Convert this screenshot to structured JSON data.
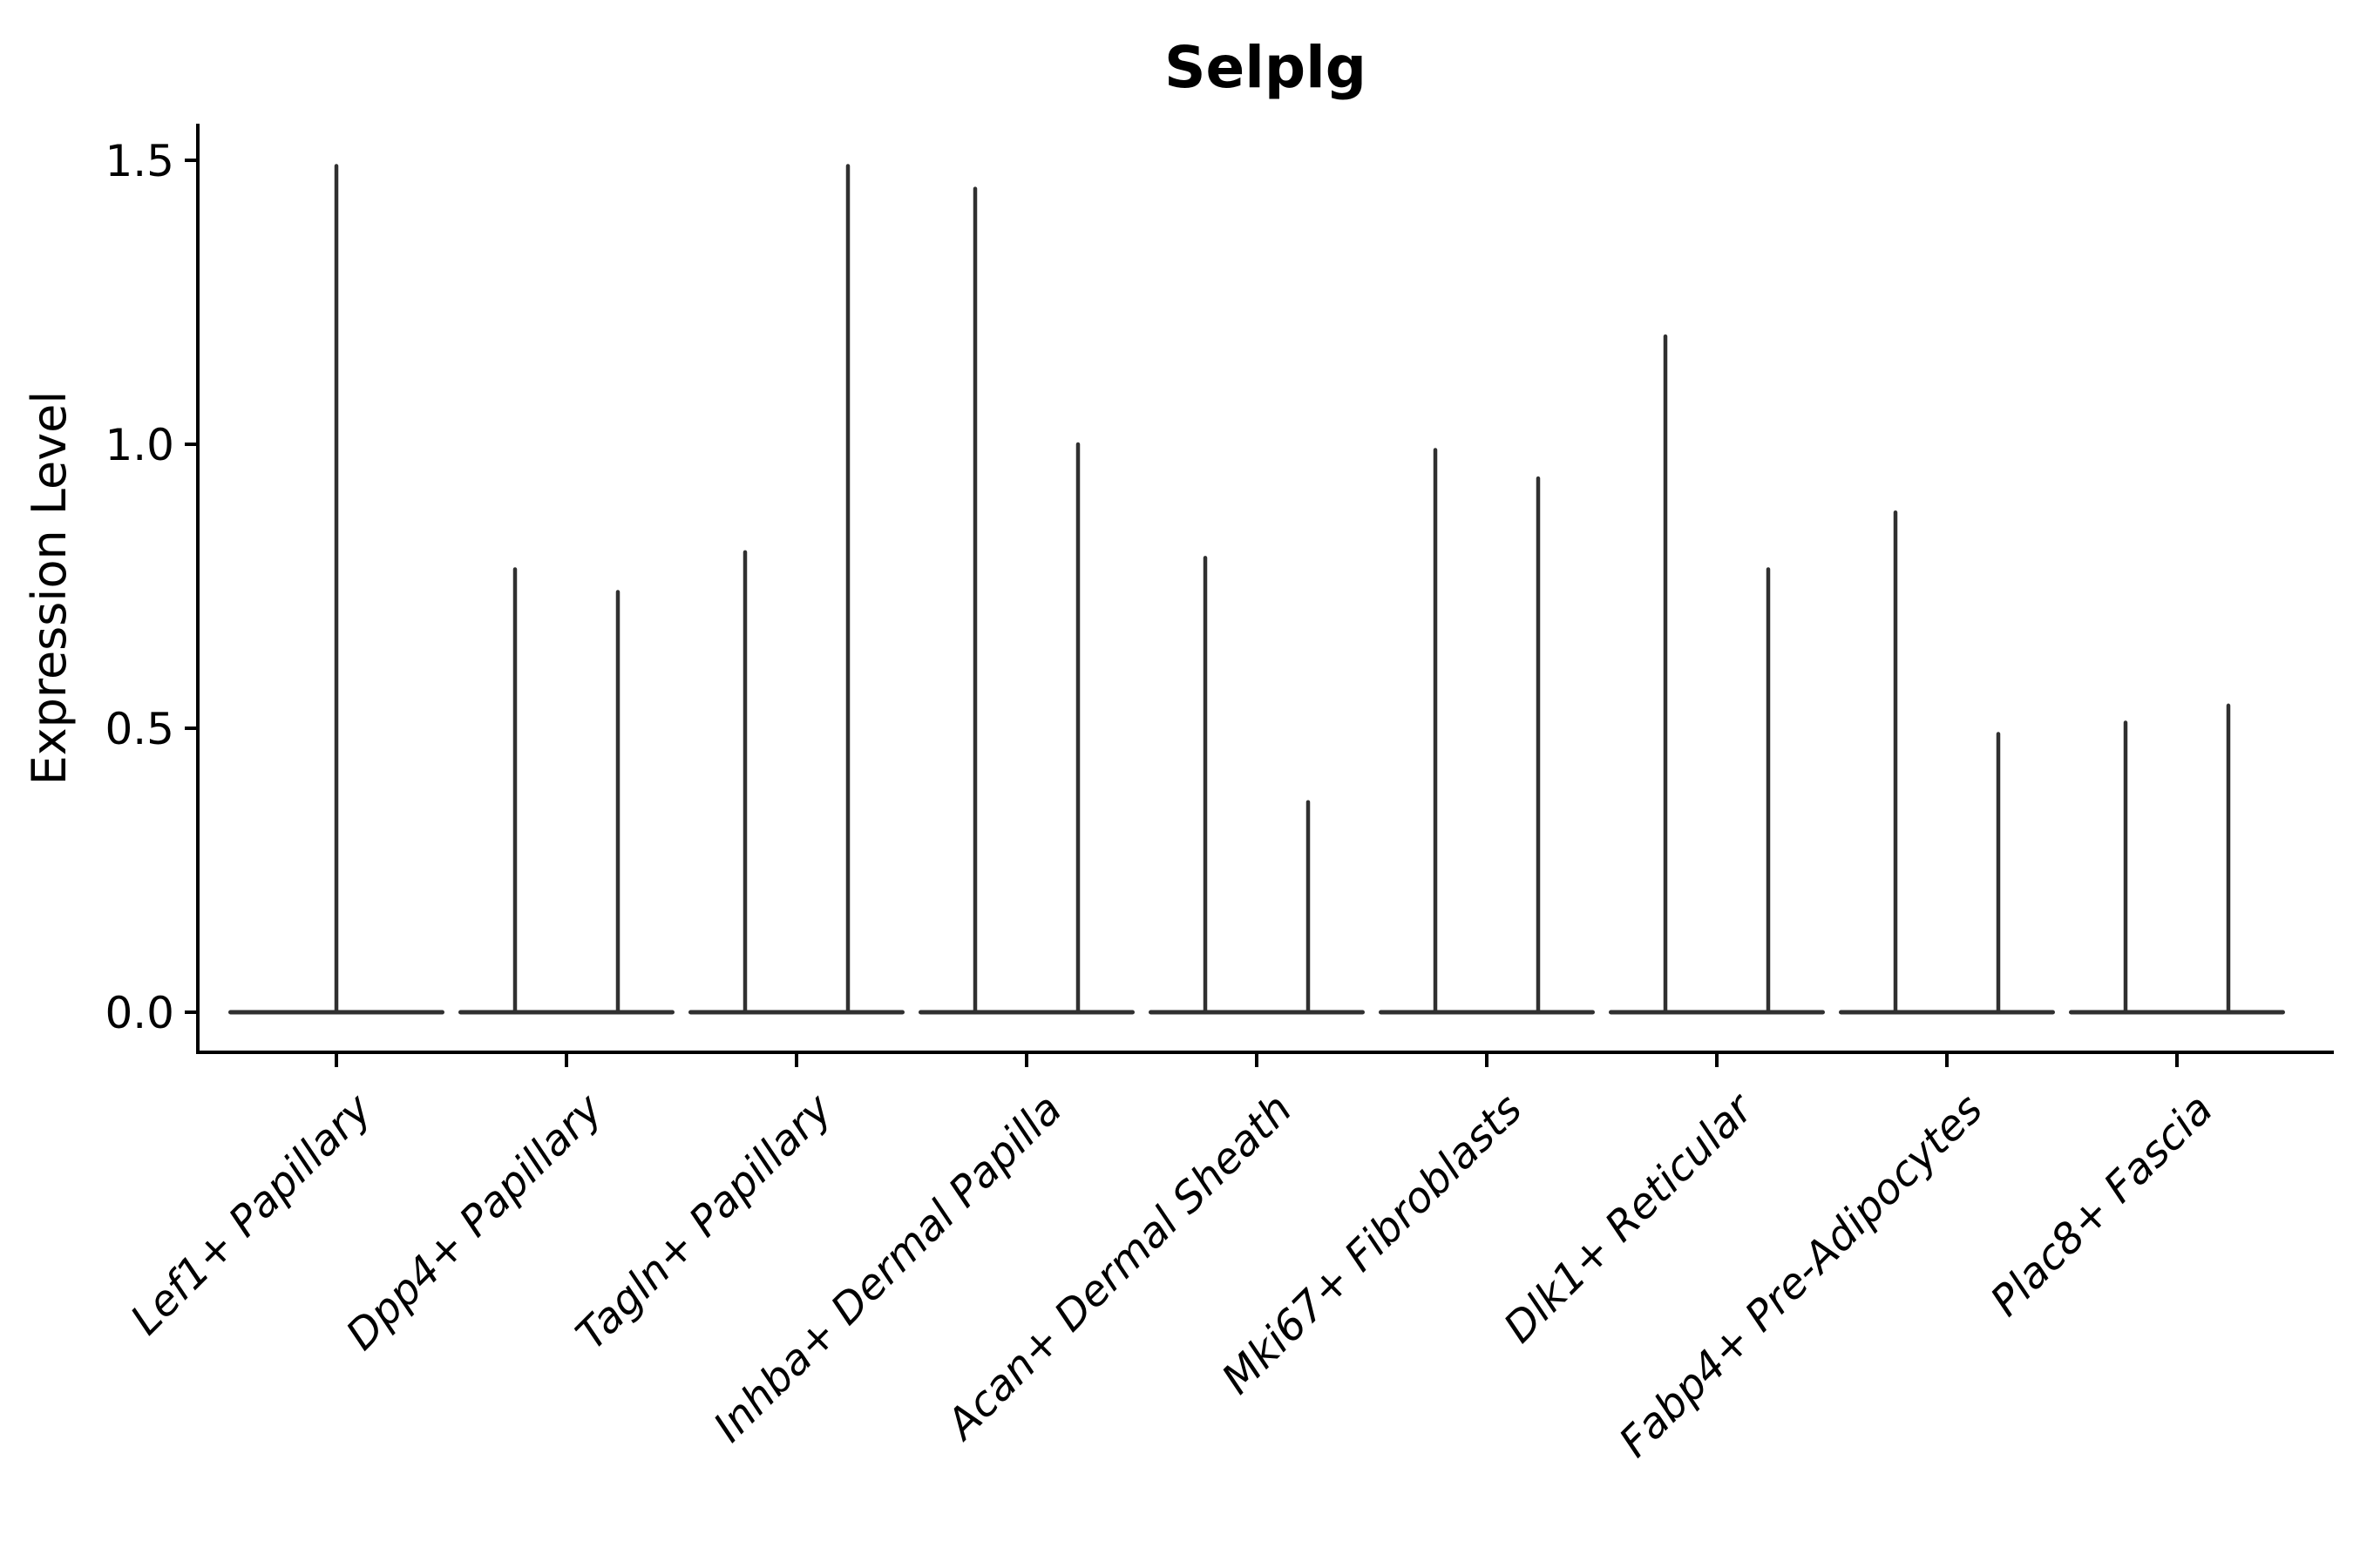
{
  "page": {
    "background": "#ffffff"
  },
  "chart_data": {
    "type": "violin",
    "title": "Selplg",
    "ylabel": "Expression Level",
    "xlabel": "",
    "grid": false,
    "legend": null,
    "ylim": [
      -0.07,
      1.56
    ],
    "yticks": [
      0.0,
      0.5,
      1.0,
      1.5
    ],
    "ytick_labels": [
      "0.0",
      "0.5",
      "1.0",
      "1.5"
    ],
    "categories": [
      "Lef1+ Papillary",
      "Dpp4+ Papillary",
      "Tagln+ Papillary",
      "Inhba+ Dermal Papilla",
      "Acan+ Dermal Sheath",
      "Mki67+ Fibroblasts",
      "Dlk1+ Reticular",
      "Fabp4+ Pre-Adipocytes",
      "Plac8+ Fascia"
    ],
    "violins": [
      {
        "category": "Lef1+ Papillary",
        "maxima": [
          1.49
        ]
      },
      {
        "category": "Dpp4+ Papillary",
        "maxima": [
          0.78,
          0.74
        ]
      },
      {
        "category": "Tagln+ Papillary",
        "maxima": [
          0.81,
          1.49
        ]
      },
      {
        "category": "Inhba+ Dermal Papilla",
        "maxima": [
          1.45,
          1.0
        ]
      },
      {
        "category": "Acan+ Dermal Sheath",
        "maxima": [
          0.8,
          0.37
        ]
      },
      {
        "category": "Mki67+ Fibroblasts",
        "maxima": [
          0.99,
          0.94
        ]
      },
      {
        "category": "Dlk1+ Reticular",
        "maxima": [
          1.19,
          0.78
        ]
      },
      {
        "category": "Fabp4+ Pre-Adipocytes",
        "maxima": [
          0.88,
          0.49
        ]
      },
      {
        "category": "Plac8+ Fascia",
        "maxima": [
          0.51,
          0.54
        ]
      }
    ],
    "violin_baseline_value": 0.0,
    "style": {
      "violin_color": "#303030",
      "spine_color": "#000000",
      "text_color": "#000000"
    }
  }
}
